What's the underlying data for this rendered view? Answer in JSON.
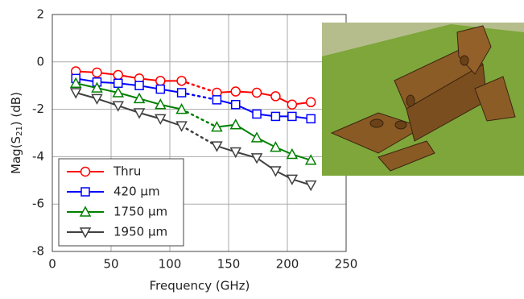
{
  "chart_data": {
    "type": "line",
    "x_label": "Frequency (GHz)",
    "y_label": [
      "Mag(S",
      "21",
      ") (dB)"
    ],
    "x": [
      20,
      38,
      56,
      74,
      92,
      110,
      140,
      156,
      174,
      190,
      204,
      220
    ],
    "series": [
      {
        "name": "Thru",
        "color": "#ff0000",
        "marker": "circle",
        "values": [
          -0.4,
          -0.45,
          -0.55,
          -0.7,
          -0.8,
          -0.8,
          -1.3,
          -1.25,
          -1.3,
          -1.45,
          -1.8,
          -1.7
        ]
      },
      {
        "name": "420 µm",
        "color": "#0000ff",
        "marker": "square",
        "values": [
          -0.7,
          -0.85,
          -0.9,
          -1.0,
          -1.15,
          -1.3,
          -1.6,
          -1.8,
          -2.2,
          -2.3,
          -2.3,
          -2.4
        ]
      },
      {
        "name": "1750 µm",
        "color": "#008000",
        "marker": "triangle-up",
        "values": [
          -0.9,
          -1.1,
          -1.3,
          -1.55,
          -1.8,
          -2.0,
          -2.75,
          -2.65,
          -3.2,
          -3.6,
          -3.9,
          -4.15
        ]
      },
      {
        "name": "1950 µm",
        "color": "#404040",
        "marker": "triangle-down",
        "values": [
          -1.3,
          -1.55,
          -1.85,
          -2.15,
          -2.4,
          -2.7,
          -3.55,
          -3.8,
          -4.05,
          -4.6,
          -4.95,
          -5.2
        ]
      }
    ],
    "xlim": [
      0,
      250
    ],
    "xticks": [
      0,
      50,
      100,
      150,
      200,
      250
    ],
    "ylim": [
      -8,
      2
    ],
    "yticks": [
      -8,
      -6,
      -4,
      -2,
      0,
      2
    ],
    "grid": true,
    "legend": "lower left"
  }
}
